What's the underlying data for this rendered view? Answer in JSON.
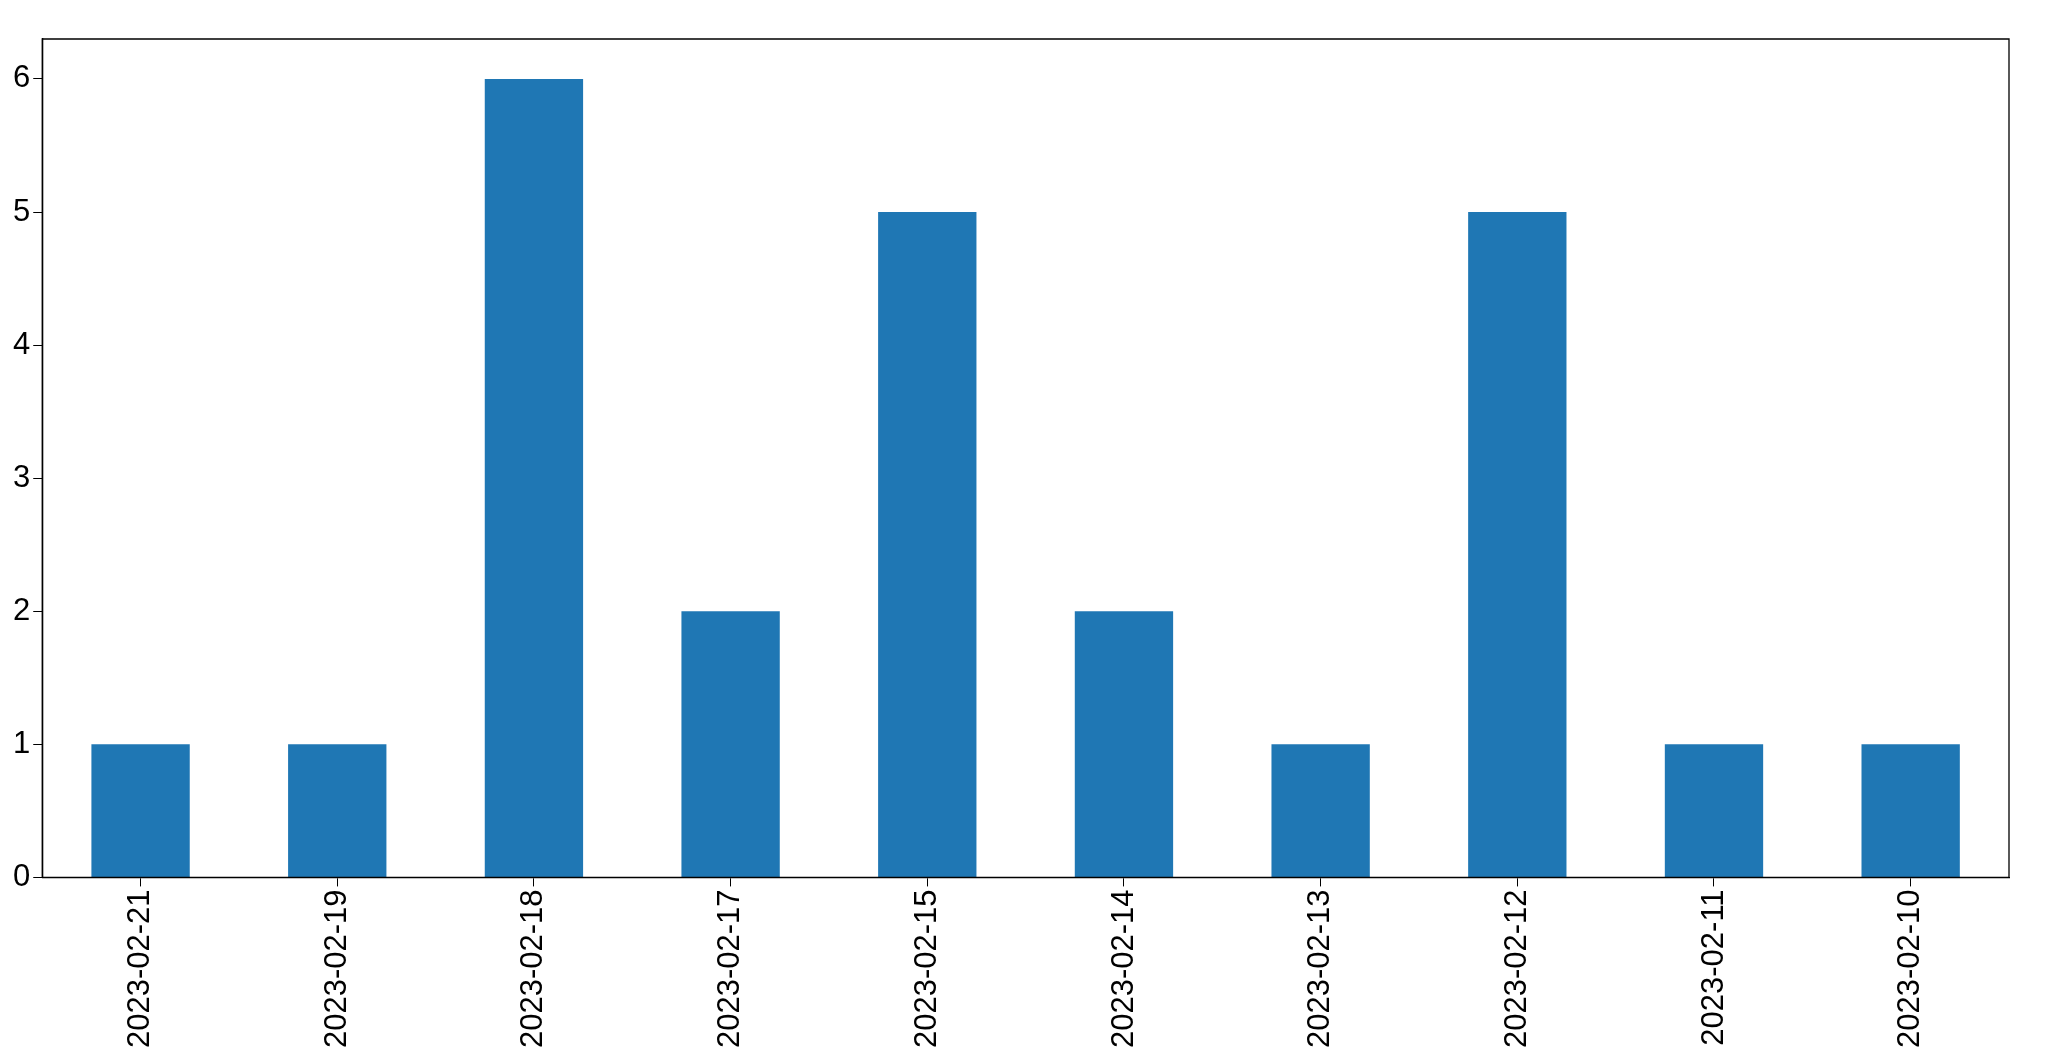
{
  "chart_data": {
    "type": "bar",
    "categories": [
      "2023-02-21",
      "2023-02-19",
      "2023-02-18",
      "2023-02-17",
      "2023-02-15",
      "2023-02-14",
      "2023-02-13",
      "2023-02-12",
      "2023-02-11",
      "2023-02-10"
    ],
    "values": [
      1,
      1,
      6,
      2,
      5,
      2,
      1,
      5,
      1,
      1
    ],
    "color": "#1f77b4",
    "ylim": [
      0,
      6.3
    ],
    "yticks": [
      0,
      1,
      2,
      3,
      4,
      5,
      6
    ],
    "grid": false,
    "legend": false
  }
}
